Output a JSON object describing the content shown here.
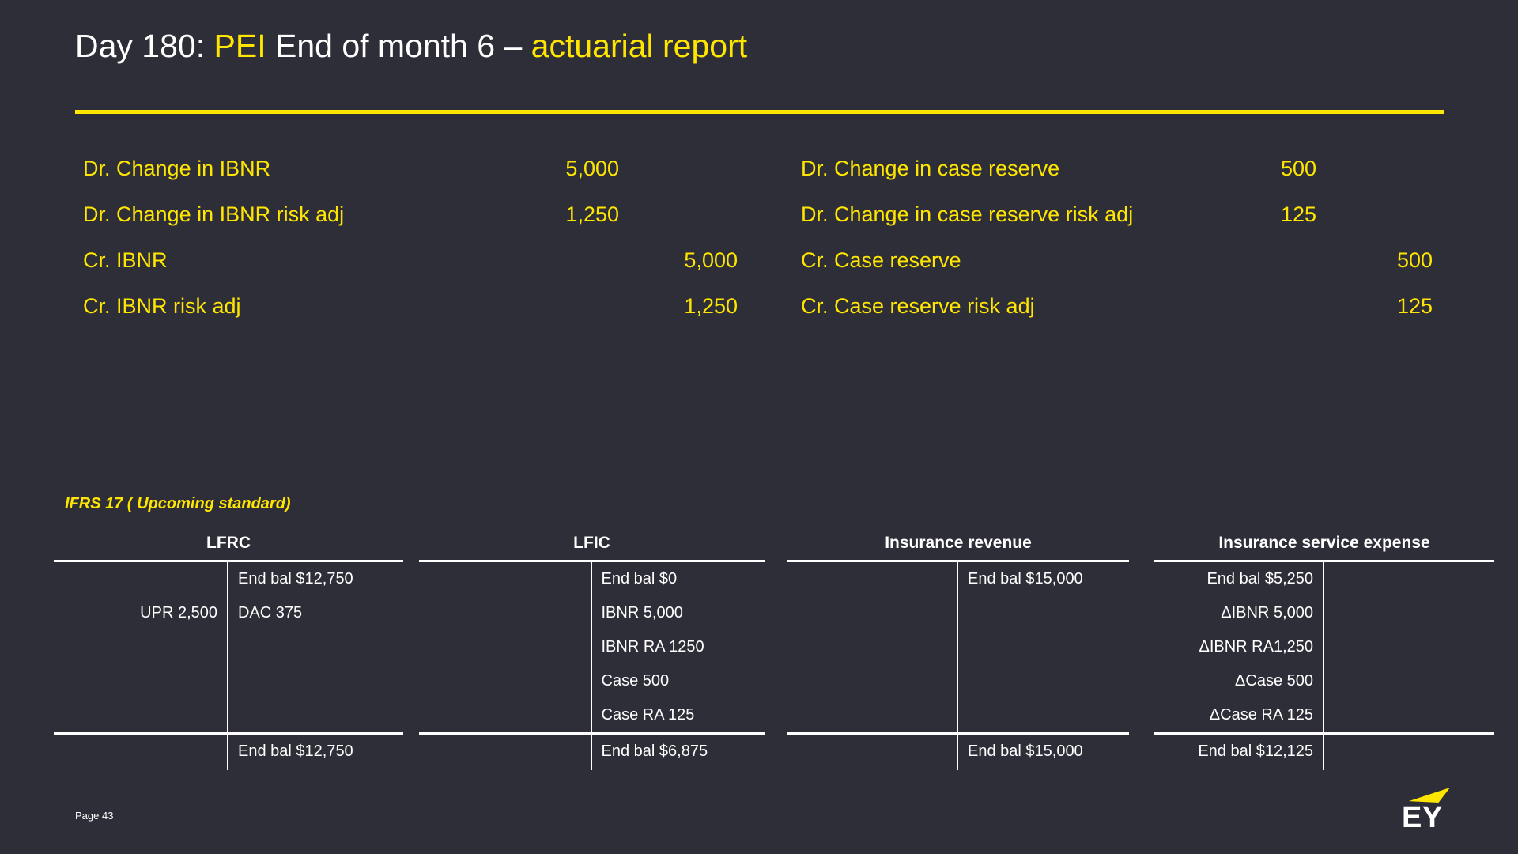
{
  "slide": {
    "title": {
      "part1": "Day 180: ",
      "part2": "PEI",
      "part3": " End of month 6 – ",
      "part4": "actuarial report"
    },
    "page_label": "Page 43",
    "logo_text": "EY"
  },
  "colors": {
    "background": "#2E2E38",
    "accent_yellow": "#FFE600",
    "text_white": "#FFFFFF"
  },
  "journal_left": {
    "rows": [
      {
        "label": "Dr. Change in IBNR",
        "debit": "5,000",
        "credit": ""
      },
      {
        "label": "Dr. Change in IBNR risk adj",
        "debit": "1,250",
        "credit": ""
      },
      {
        "label": "Cr. IBNR",
        "debit": "",
        "credit": "5,000"
      },
      {
        "label": "Cr. IBNR risk adj",
        "debit": "",
        "credit": "1,250"
      }
    ]
  },
  "journal_right": {
    "rows": [
      {
        "label": "Dr. Change in case reserve",
        "debit": "500",
        "credit": ""
      },
      {
        "label": "Dr. Change in case reserve risk adj",
        "debit": "125",
        "credit": ""
      },
      {
        "label": "Cr. Case reserve",
        "debit": "",
        "credit": "500"
      },
      {
        "label": "Cr. Case reserve risk adj",
        "debit": "",
        "credit": "125"
      }
    ]
  },
  "ifrs_label": "IFRS 17 ( Upcoming standard)",
  "taccounts": [
    {
      "title": "LFRC",
      "rows": [
        {
          "l": "",
          "r": "End bal $12,750"
        },
        {
          "l": "UPR 2,500",
          "r": "DAC 375"
        },
        {
          "l": "",
          "r": ""
        },
        {
          "l": "",
          "r": ""
        },
        {
          "l": "",
          "r": ""
        }
      ],
      "footer": {
        "l": "",
        "r": "End bal $12,750"
      }
    },
    {
      "title": "LFIC",
      "rows": [
        {
          "l": "",
          "r": "End bal $0"
        },
        {
          "l": "",
          "r": "IBNR 5,000"
        },
        {
          "l": "",
          "r": "IBNR RA 1250"
        },
        {
          "l": "",
          "r": "Case 500"
        },
        {
          "l": "",
          "r": "Case RA 125"
        }
      ],
      "footer": {
        "l": "",
        "r": "End bal $6,875"
      }
    },
    {
      "title": "Insurance revenue",
      "rows": [
        {
          "l": "",
          "r": "End bal $15,000"
        },
        {
          "l": "",
          "r": ""
        },
        {
          "l": "",
          "r": ""
        },
        {
          "l": "",
          "r": ""
        },
        {
          "l": "",
          "r": ""
        }
      ],
      "footer": {
        "l": "",
        "r": "End bal $15,000"
      }
    },
    {
      "title": "Insurance service expense",
      "rows": [
        {
          "l": "End bal $5,250",
          "r": ""
        },
        {
          "l": "ΔIBNR 5,000",
          "r": ""
        },
        {
          "l": "ΔIBNR RA1,250",
          "r": ""
        },
        {
          "l": "ΔCase 500",
          "r": ""
        },
        {
          "l": "ΔCase RA 125",
          "r": ""
        }
      ],
      "footer": {
        "l": "End bal $12,125",
        "r": ""
      }
    }
  ]
}
